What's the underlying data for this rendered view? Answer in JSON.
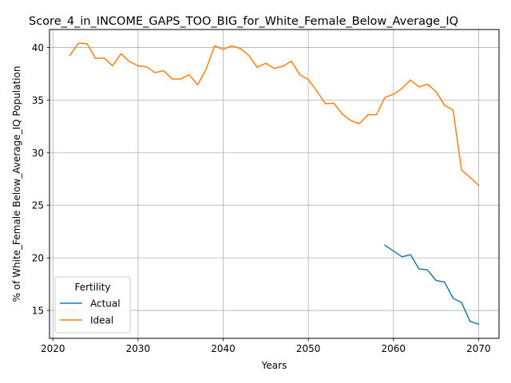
{
  "chart_data": {
    "type": "line",
    "title": "Score_4_in_INCOME_GAPS_TOO_BIG_for_White_Female_Below_Average_IQ",
    "xlabel": "Years",
    "ylabel": "% of White_Female Below_Average_IQ Population",
    "xlim": [
      2019.6,
      2072.4
    ],
    "ylim": [
      12.35,
      41.7
    ],
    "x_ticks": [
      2020,
      2030,
      2040,
      2050,
      2060,
      2070
    ],
    "y_ticks": [
      15,
      20,
      25,
      30,
      35,
      40
    ],
    "grid": true,
    "legend": {
      "title": "Fertility",
      "placement": "lower-left"
    },
    "series": [
      {
        "name": "Actual",
        "color": "#1f77b4",
        "x": [
          2059,
          2060,
          2061,
          2062,
          2063,
          2064,
          2065,
          2066,
          2067,
          2068,
          2069,
          2070
        ],
        "values": [
          21.2,
          20.65,
          20.1,
          20.3,
          18.95,
          18.85,
          17.85,
          17.7,
          16.15,
          15.75,
          13.95,
          13.7
        ]
      },
      {
        "name": "Ideal",
        "color": "#ff7f0e",
        "x": [
          2022,
          2023,
          2024,
          2025,
          2026,
          2027,
          2028,
          2029,
          2030,
          2031,
          2032,
          2033,
          2034,
          2035,
          2036,
          2037,
          2038,
          2039,
          2040,
          2041,
          2042,
          2043,
          2044,
          2045,
          2046,
          2047,
          2048,
          2049,
          2050,
          2051,
          2052,
          2053,
          2054,
          2055,
          2056,
          2057,
          2058,
          2059,
          2060,
          2061,
          2062,
          2063,
          2064,
          2065,
          2066,
          2067,
          2068,
          2069,
          2070
        ],
        "values": [
          39.25,
          40.4,
          40.35,
          38.95,
          39.0,
          38.25,
          39.4,
          38.65,
          38.25,
          38.15,
          37.6,
          37.8,
          37.0,
          37.0,
          37.4,
          36.45,
          37.95,
          40.15,
          39.8,
          40.15,
          39.9,
          39.25,
          38.1,
          38.5,
          38.0,
          38.2,
          38.7,
          37.4,
          36.95,
          35.85,
          34.65,
          34.7,
          33.65,
          33.05,
          32.75,
          33.6,
          33.6,
          35.25,
          35.55,
          36.1,
          36.9,
          36.25,
          36.5,
          35.8,
          34.5,
          34.05,
          28.35,
          27.65,
          26.9
        ]
      }
    ]
  }
}
